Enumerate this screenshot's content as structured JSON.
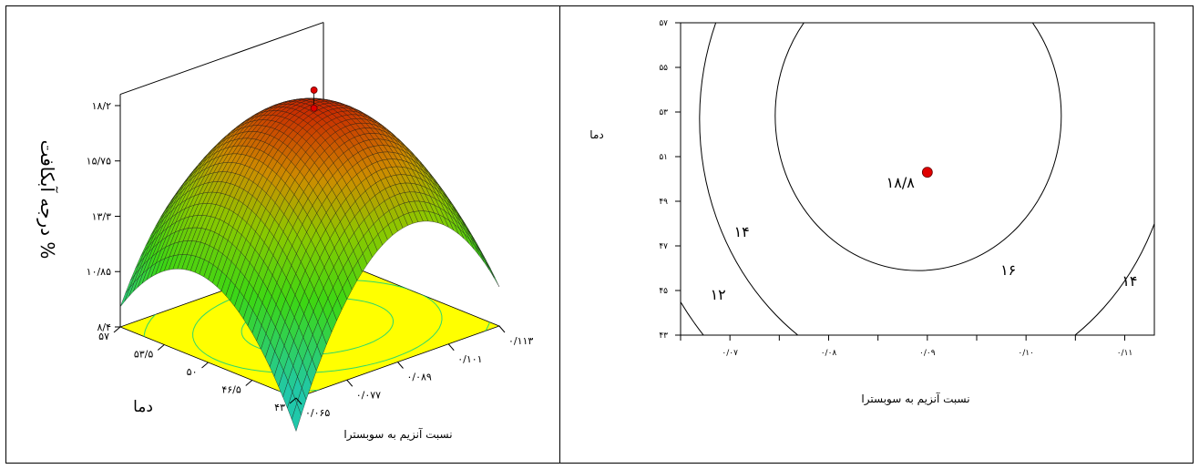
{
  "chart_data": [
    {
      "type": "surface",
      "zlabel": "% درجه آبکافت",
      "xlabel": "نسبت آنزیم به سوبسترا",
      "ylabel": "دما",
      "x_ticks": [
        "۰/۰۶۵",
        "۰/۰۷۷",
        "۰/۰۸۹",
        "۰/۱۰۱",
        "۰/۱۱۳"
      ],
      "y_ticks": [
        "۴۳",
        "۴۶/۵",
        "۵۰",
        "۵۳/۵",
        "۵۷"
      ],
      "z_ticks": [
        "۸/۴",
        "۱۰/۸۵",
        "۱۳/۳",
        "۱۵/۷۵",
        "۱۸/۲"
      ],
      "x_range": [
        0.065,
        0.113
      ],
      "y_range": [
        43,
        57
      ],
      "z_range": [
        8.4,
        18.2
      ],
      "max_point": {
        "x": 0.09,
        "y": 50,
        "z": 18.8
      },
      "colors": {
        "low": "#1fc8a0",
        "mid": "#32d400",
        "high": "#d92e00",
        "floor": "#ffff00",
        "floor_contour": "#2ed86a",
        "point": "#e00000"
      }
    },
    {
      "type": "contour",
      "xlabel": "نسبت آنزیم به سوبسترا",
      "ylabel": "دما",
      "x_ticks": [
        "۰/۰۷",
        "۰/۰۸",
        "۰/۰۹",
        "۰/۱۰",
        "۰/۱۱"
      ],
      "x_tick_values": [
        0.07,
        0.08,
        0.09,
        0.1,
        0.11
      ],
      "y_ticks": [
        "۴۳",
        "۴۵",
        "۴۷",
        "۴۹",
        "۵۱",
        "۵۳",
        "۵۵",
        "۵۷"
      ],
      "y_tick_values": [
        43,
        45,
        47,
        49,
        51,
        53,
        55,
        57
      ],
      "x_range": [
        0.065,
        0.113
      ],
      "y_range": [
        43,
        57
      ],
      "contour_levels": [
        12,
        14,
        16
      ],
      "contour_labels": [
        {
          "text": "۱۲",
          "x": 0.0688,
          "y": 44.6
        },
        {
          "text": "۱۴",
          "x": 0.0712,
          "y": 47.4
        },
        {
          "text": "۱۶",
          "x": 0.0982,
          "y": 45.7
        },
        {
          "text": "۱۴",
          "x": 0.1105,
          "y": 45.2
        }
      ],
      "optimum": {
        "x": 0.09,
        "y": 50.3,
        "label": "۱۸/۸"
      },
      "colors": {
        "point": "#e00000",
        "lines": "#000000"
      }
    }
  ]
}
